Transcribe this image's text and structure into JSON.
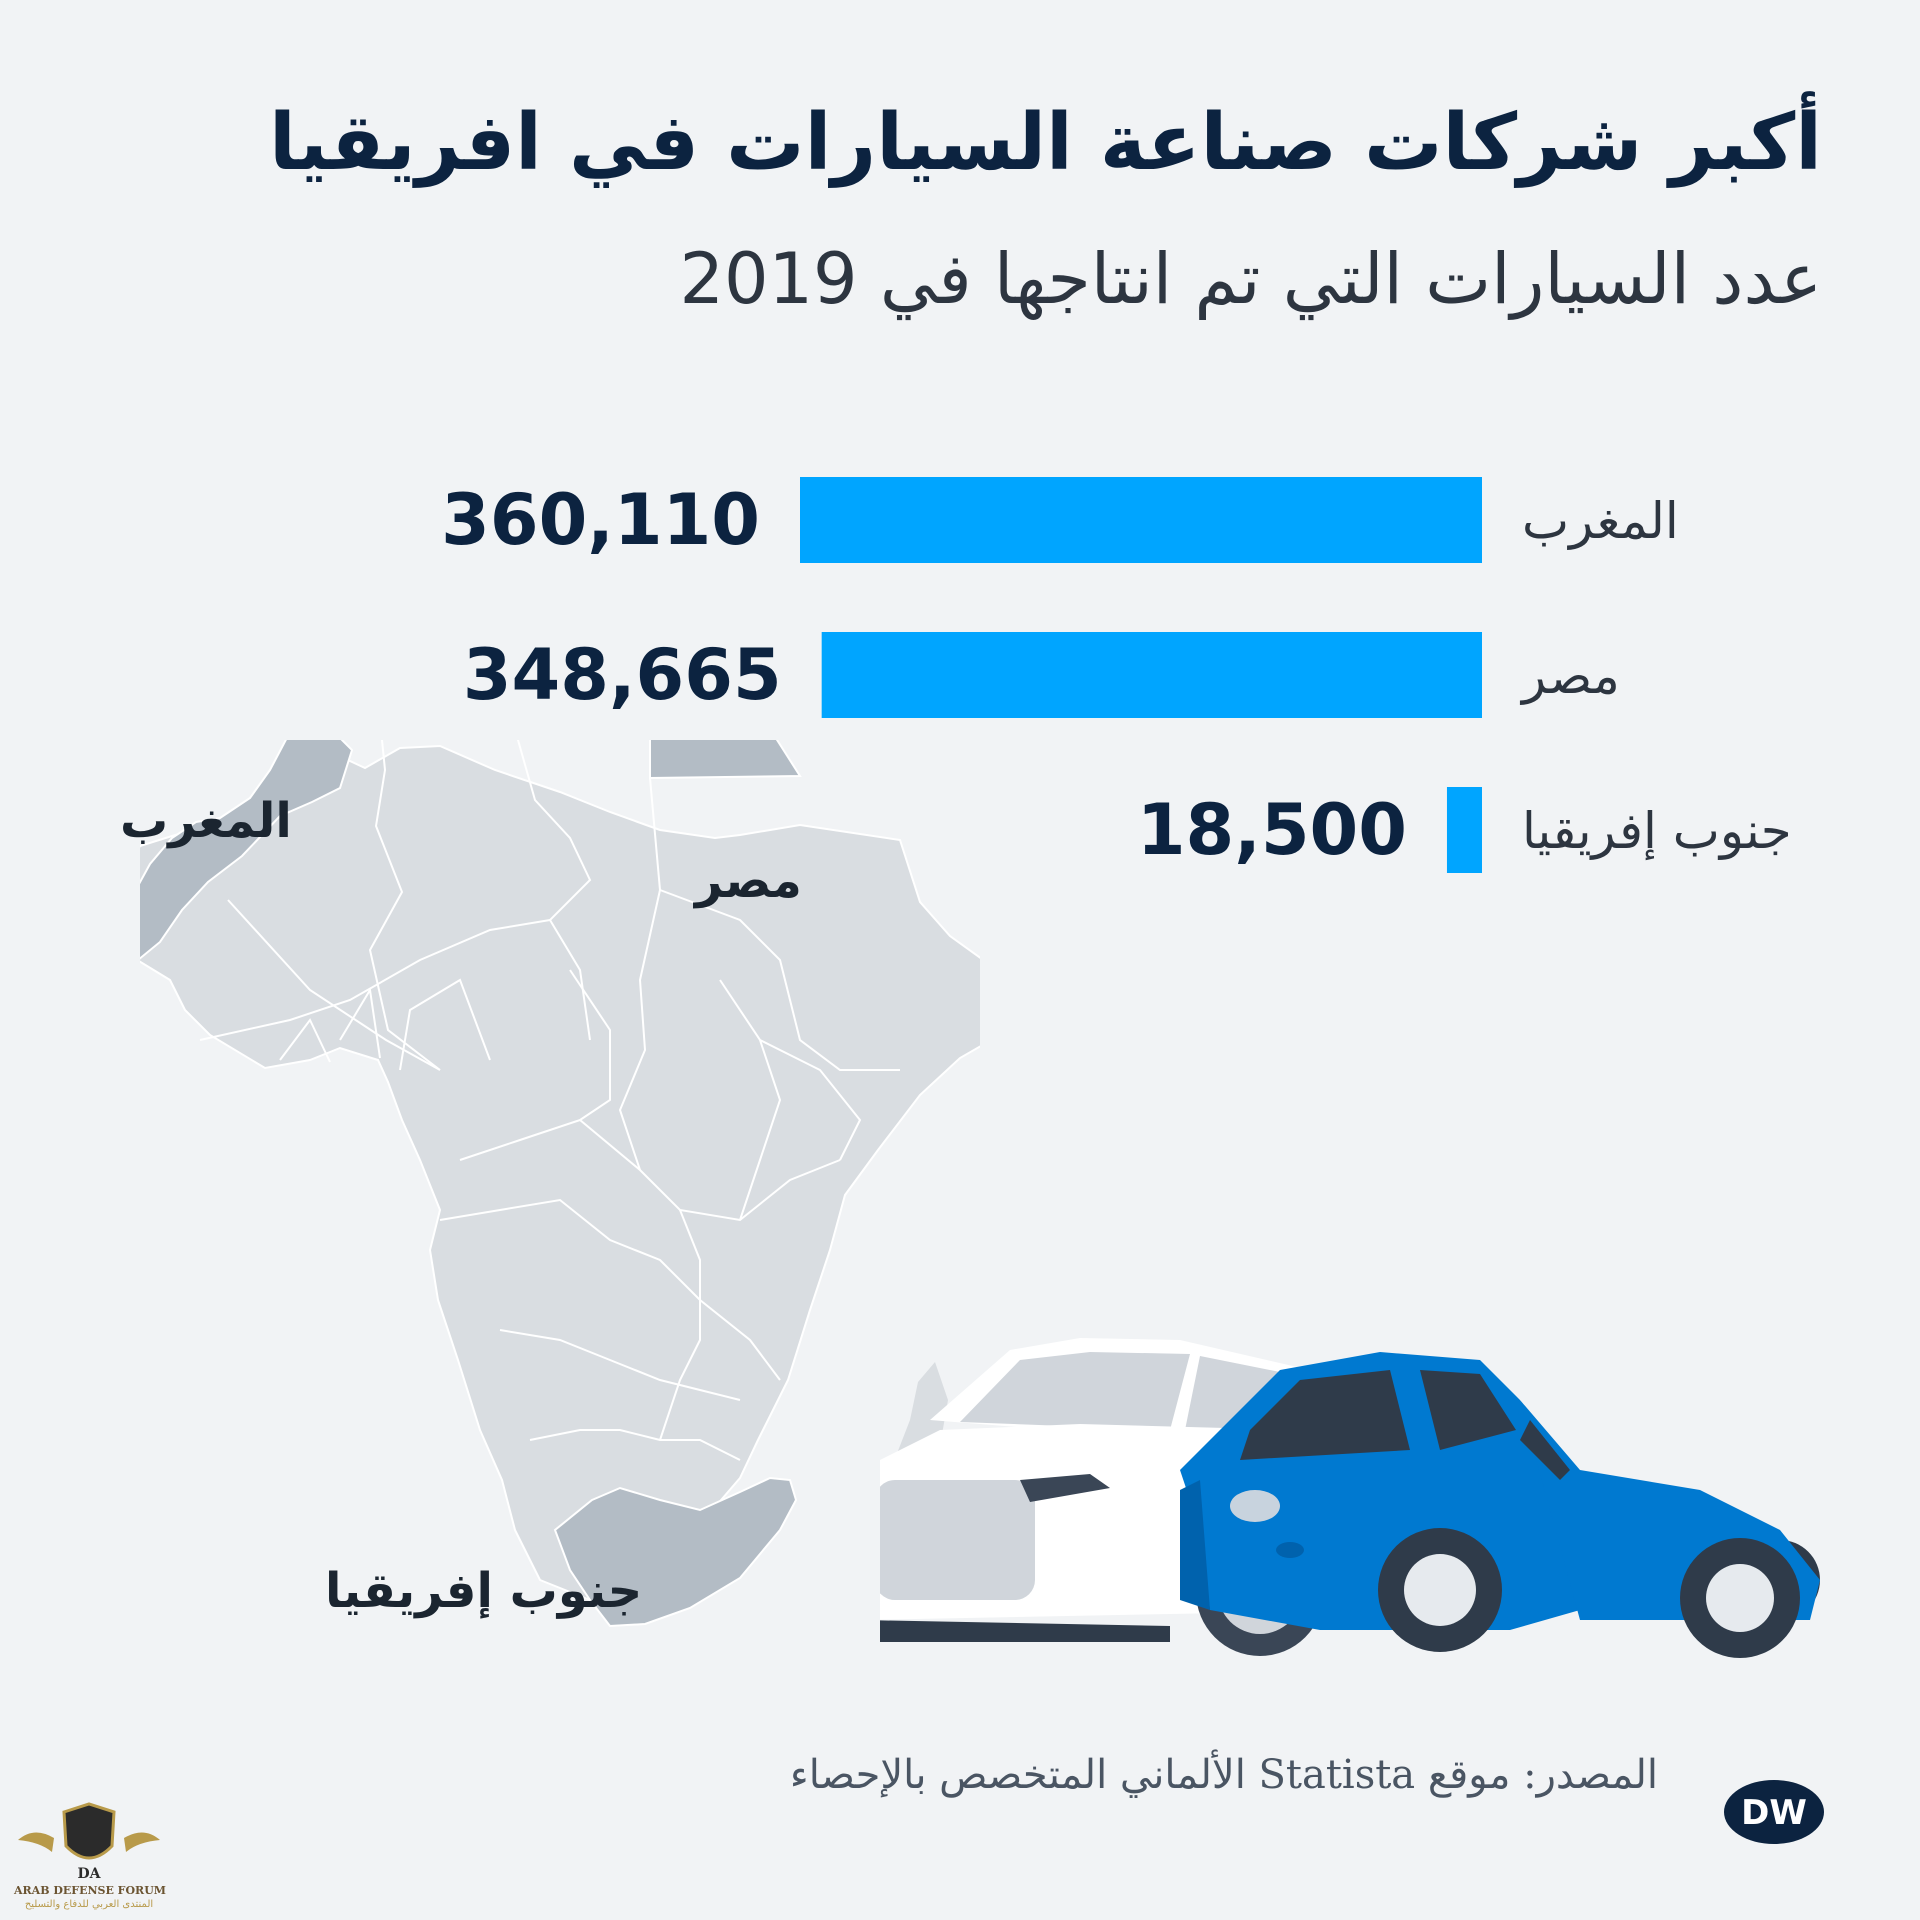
{
  "title": "أكبر شركات صناعة السيارات في افريقيا",
  "subtitle": "عدد السيارات التي تم انتاجها في 2019",
  "chart_data": {
    "type": "bar",
    "orientation": "horizontal",
    "title": "أكبر شركات صناعة السيارات في افريقيا",
    "subtitle": "عدد السيارات التي تم انتاجها في 2019",
    "categories": [
      "المغرب",
      "مصر",
      "جنوب إفريقيا"
    ],
    "values": [
      360110,
      348665,
      18500
    ],
    "value_labels": [
      "360,110",
      "348,665",
      "18,500"
    ],
    "bar_color": "#00a5ff",
    "grid": false,
    "legend": "none"
  },
  "map": {
    "labels": {
      "morocco": "المغرب",
      "egypt": "مصر",
      "south_africa": "جنوب إفريقيا"
    },
    "highlight_color": "#b3bcc5",
    "base_color": "#d9dde1",
    "border_color": "#ffffff"
  },
  "illustration": {
    "white_car_color": "#ffffff",
    "blue_car_color": "#0079d0"
  },
  "footer": {
    "source": "المصدر: موقع Statista الألماني المتخصص بالإحصاء",
    "dw_logo": "DW"
  },
  "watermark": {
    "initials": "DA",
    "name": "ARAB DEFENSE FORUM",
    "tagline": "المنتدى العربي للدفاع والتسليح"
  },
  "colors": {
    "background": "#f1f3f5",
    "title": "#0c2340",
    "label": "#2d3540",
    "dw_logo": "#0c2340"
  }
}
